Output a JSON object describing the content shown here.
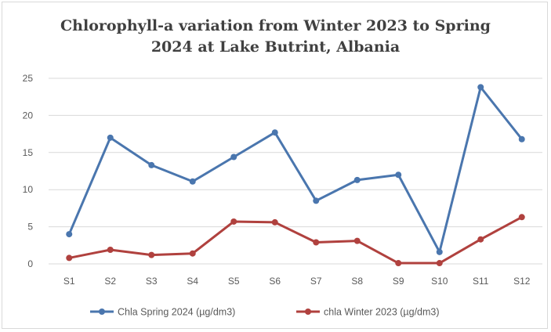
{
  "chart_data": {
    "type": "line",
    "title_lines": [
      "Chlorophyll-a  variation from Winter 2023 to Spring",
      "2024 at Lake Butrint, Albania"
    ],
    "xlabel": "",
    "ylabel": "",
    "categories": [
      "S1",
      "S2",
      "S3",
      "S4",
      "S5",
      "S6",
      "S7",
      "S8",
      "S9",
      "S10",
      "S11",
      "S12"
    ],
    "ylim": [
      0,
      25
    ],
    "yticks": [
      "0",
      "5",
      "10",
      "15",
      "20",
      "25"
    ],
    "grid": true,
    "legend_position": "bottom",
    "series": [
      {
        "name": "Chla Spring 2024 (µg/dm3)",
        "color": "#4a76ae",
        "values": [
          4.0,
          17.0,
          13.3,
          11.1,
          14.4,
          17.7,
          8.5,
          11.3,
          12.0,
          1.6,
          23.8,
          16.8
        ]
      },
      {
        "name": "chla  Winter 2023 (µg/dm3)",
        "color": "#b0413e",
        "values": [
          0.8,
          1.9,
          1.2,
          1.4,
          5.7,
          5.6,
          2.9,
          3.1,
          0.1,
          0.1,
          3.3,
          6.3
        ]
      }
    ]
  }
}
